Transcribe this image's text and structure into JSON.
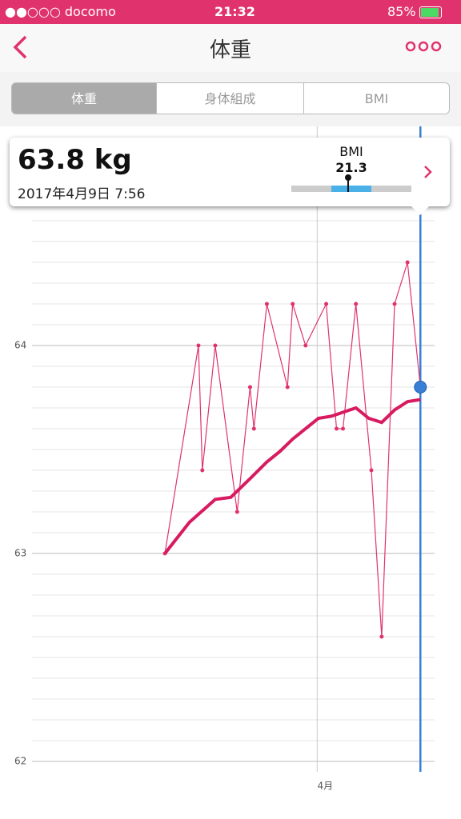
{
  "status_bar": {
    "carrier": "●●○○○ docomo",
    "time": "21:32",
    "battery": "85%"
  },
  "header": {
    "title": "体重"
  },
  "tabs": [
    "体重",
    "身体組成",
    "BMI"
  ],
  "card": {
    "weight": "63.8 kg",
    "datetime": "2017年4月9日 7:56",
    "bmi_label": "BMI",
    "bmi_value": "21.3"
  },
  "chart_data": {
    "type": "line",
    "xlim": [
      68.9,
      100.1
    ],
    "ylim": [
      61.95,
      64.65
    ],
    "xticks": [
      {
        "value": 91,
        "label": "4月"
      }
    ],
    "yticks": [
      62,
      63,
      64
    ],
    "grid": true,
    "minor_grid": true,
    "series": [
      {
        "color": "#e0336e",
        "markers": true,
        "width": 1.2,
        "x": [
          79.2,
          81.8,
          82.1,
          83.1,
          84.8,
          85.8,
          86.1,
          87.1,
          88.7,
          89.1,
          90.1,
          91.7,
          92.5,
          93.0,
          94.0,
          95.2,
          96.0,
          97.0,
          98.0,
          99.0
        ],
        "values": [
          63.0,
          64.0,
          63.4,
          64.0,
          63.2,
          63.8,
          63.6,
          64.2,
          63.8,
          64.2,
          64.0,
          64.2,
          63.6,
          63.6,
          64.2,
          63.4,
          62.6,
          64.2,
          64.4,
          63.8
        ]
      },
      {
        "color": "#d81b60",
        "markers": false,
        "width": 4,
        "x": [
          79.2,
          81.1,
          83.1,
          84.3,
          85.8,
          87.1,
          88.1,
          89.1,
          91.1,
          92.1,
          94.0,
          95.0,
          96.0,
          97.0,
          98.0,
          99.0
        ],
        "values": [
          63.0,
          63.15,
          63.26,
          63.27,
          63.36,
          63.44,
          63.49,
          63.55,
          63.65,
          63.66,
          63.7,
          63.65,
          63.63,
          63.69,
          63.73,
          63.74
        ]
      }
    ],
    "selected": {
      "series": 0,
      "index": 19,
      "color": "#3a7fd5"
    }
  }
}
